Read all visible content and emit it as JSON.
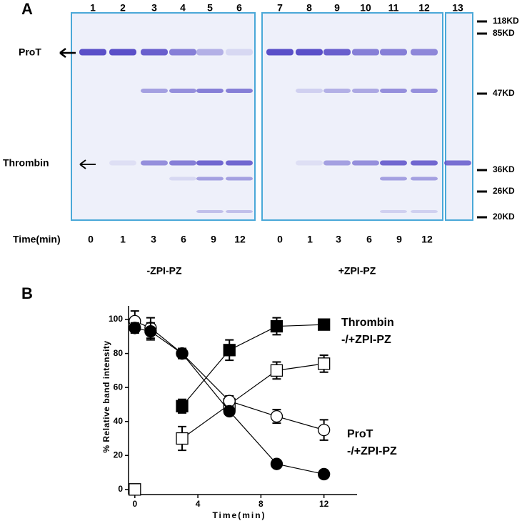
{
  "gel": {
    "panel": "A",
    "lanes": [
      "1",
      "2",
      "3",
      "4",
      "5",
      "6",
      "7",
      "8",
      "9",
      "10",
      "11",
      "12",
      "13"
    ],
    "markers": [
      "118KD",
      "85KD",
      "47KD",
      "36KD",
      "26KD",
      "20KD"
    ],
    "proteins": [
      "ProT",
      "Thrombin"
    ],
    "time_label": "Time(min)",
    "times": [
      "0",
      "1",
      "3",
      "6",
      "9",
      "12",
      "0",
      "1",
      "3",
      "6",
      "9",
      "12"
    ],
    "groups": [
      "-ZPI-PZ",
      "+ZPI-PZ"
    ]
  },
  "chart_data": {
    "type": "line",
    "panel": "B",
    "ylabel": "% Relative band intensity",
    "xlabel": "Time(min)",
    "annotations": [
      "Thrombin",
      "-/+ZPI-PZ",
      "ProT",
      "-/+ZPI-PZ"
    ],
    "x": [
      0,
      1,
      3,
      6,
      9,
      12
    ],
    "series": [
      {
        "color": "#000000",
        "marker": "square",
        "filled": true,
        "values": [
          0,
          null,
          49,
          82,
          96,
          97
        ],
        "errors": [
          0,
          null,
          4,
          6,
          5,
          2
        ]
      },
      {
        "color": "#000000",
        "marker": "square",
        "filled": false,
        "values": [
          0,
          null,
          30,
          50,
          70,
          74
        ],
        "errors": [
          0,
          null,
          7,
          2,
          5,
          5
        ]
      },
      {
        "color": "#000000",
        "marker": "circle",
        "filled": false,
        "values": [
          99,
          95,
          80,
          52,
          43,
          35
        ],
        "errors": [
          6,
          6,
          3,
          3,
          4,
          6
        ]
      },
      {
        "color": "#000000",
        "marker": "circle",
        "filled": true,
        "values": [
          95,
          93,
          80,
          46,
          15,
          9
        ],
        "errors": [
          3,
          5,
          2,
          2,
          1,
          1
        ]
      }
    ],
    "xlim": [
      -0.4,
      14.1
    ],
    "ylim": [
      -3,
      108
    ],
    "xticks": [
      0,
      4,
      8,
      12
    ],
    "yticks": [
      0,
      20,
      40,
      60,
      80,
      100
    ]
  }
}
